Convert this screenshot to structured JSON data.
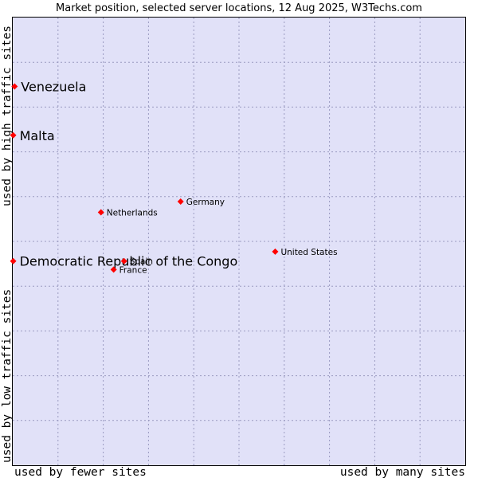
{
  "chart_data": {
    "type": "scatter",
    "title": "Market position, selected server locations, 12 Aug 2025, W3Techs.com",
    "xlabel_low": "used by fewer sites",
    "xlabel_high": "used by many sites",
    "ylabel_low": "used by low traffic sites",
    "ylabel_high": "used by high traffic sites",
    "xlim": [
      0,
      100
    ],
    "ylim": [
      0,
      100
    ],
    "grid": true,
    "colors": {
      "plot_bg": "#e1e1f8",
      "marker": "#ff0000",
      "grid": "#9a9ac0",
      "border": "#000000"
    },
    "points": [
      {
        "name": "Venezuela",
        "x": 0.4,
        "y": 84.6,
        "size": "large"
      },
      {
        "name": "Malta",
        "x": 0.1,
        "y": 73.7,
        "size": "large"
      },
      {
        "name": "Democratic Republic of the Congo",
        "x": 0.1,
        "y": 45.6,
        "size": "large"
      },
      {
        "name": "Germany",
        "x": 37.1,
        "y": 58.9,
        "size": "small"
      },
      {
        "name": "Netherlands",
        "x": 19.5,
        "y": 56.5,
        "size": "small"
      },
      {
        "name": "United States",
        "x": 58.0,
        "y": 47.7,
        "size": "small"
      },
      {
        "name": "Spain",
        "x": 24.6,
        "y": 45.6,
        "size": "small"
      },
      {
        "name": "France",
        "x": 22.3,
        "y": 43.7,
        "size": "small"
      }
    ]
  }
}
